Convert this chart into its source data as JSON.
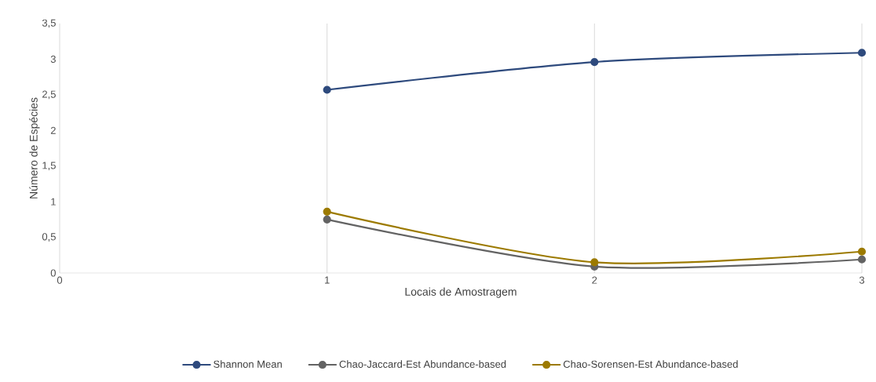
{
  "chart_data": {
    "type": "line",
    "xlabel": "Locais de Amostragem",
    "ylabel": "Número de Espécies",
    "x": [
      1,
      2,
      3
    ],
    "series": [
      {
        "name": "Shannon Mean",
        "color": "#2e4a7d",
        "values": [
          2.57,
          2.96,
          3.09
        ]
      },
      {
        "name": "Chao-Jaccard-Est Abundance-based",
        "color": "#636363",
        "values": [
          0.75,
          0.09,
          0.19
        ]
      },
      {
        "name": "Chao-Sorensen-Est Abundance-based",
        "color": "#9c7a00",
        "values": [
          0.86,
          0.15,
          0.3
        ]
      }
    ],
    "xlim": [
      0,
      3
    ],
    "xticks": [
      0,
      1,
      2,
      3
    ],
    "ylim": [
      0,
      3.5
    ],
    "yticks": [
      0,
      {
        "value": 0.5,
        "label": "0,5"
      },
      1,
      {
        "value": 1.5,
        "label": "1,5"
      },
      2,
      {
        "value": 2.5,
        "label": "2,5"
      },
      3,
      {
        "value": 3.5,
        "label": "3,5"
      }
    ],
    "grid": "x",
    "legend": "bottom",
    "marker": "circle",
    "line_style": "solid"
  }
}
